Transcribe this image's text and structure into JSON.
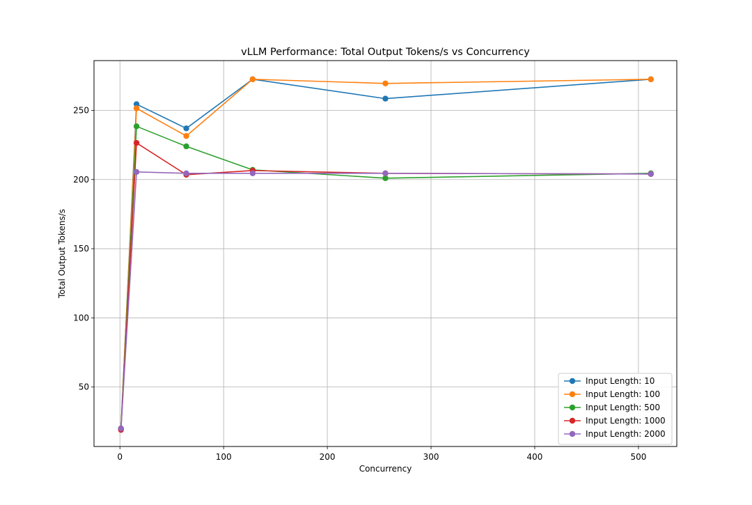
{
  "chart_data": {
    "type": "line",
    "title": "vLLM Performance: Total Output Tokens/s vs Concurrency",
    "xlabel": "Concurrency",
    "ylabel": "Total Output Tokens/s",
    "xlim": [
      -25,
      537
    ],
    "ylim": [
      7,
      286
    ],
    "x_ticks": [
      0,
      100,
      200,
      300,
      400,
      500
    ],
    "y_ticks": [
      50,
      100,
      150,
      200,
      250
    ],
    "grid": true,
    "legend_position": "lower-right",
    "x": [
      1,
      16,
      64,
      128,
      256,
      512
    ],
    "series": [
      {
        "name": "Input Length: 10",
        "color": "#1f77b4",
        "values": [
          20,
          254.5,
          237,
          272.5,
          258.5,
          272.5
        ]
      },
      {
        "name": "Input Length: 100",
        "color": "#ff7f0e",
        "values": [
          20,
          251.5,
          231.5,
          272.5,
          269.5,
          272.5
        ]
      },
      {
        "name": "Input Length: 500",
        "color": "#2ca02c",
        "values": [
          20,
          238.5,
          224,
          207,
          201,
          204.5
        ]
      },
      {
        "name": "Input Length: 1000",
        "color": "#d62728",
        "values": [
          19,
          226.5,
          203.5,
          206.5,
          204.5,
          204
        ]
      },
      {
        "name": "Input Length: 2000",
        "color": "#9467bd",
        "values": [
          20,
          205.5,
          204.5,
          204.5,
          204.5,
          204
        ]
      }
    ]
  }
}
